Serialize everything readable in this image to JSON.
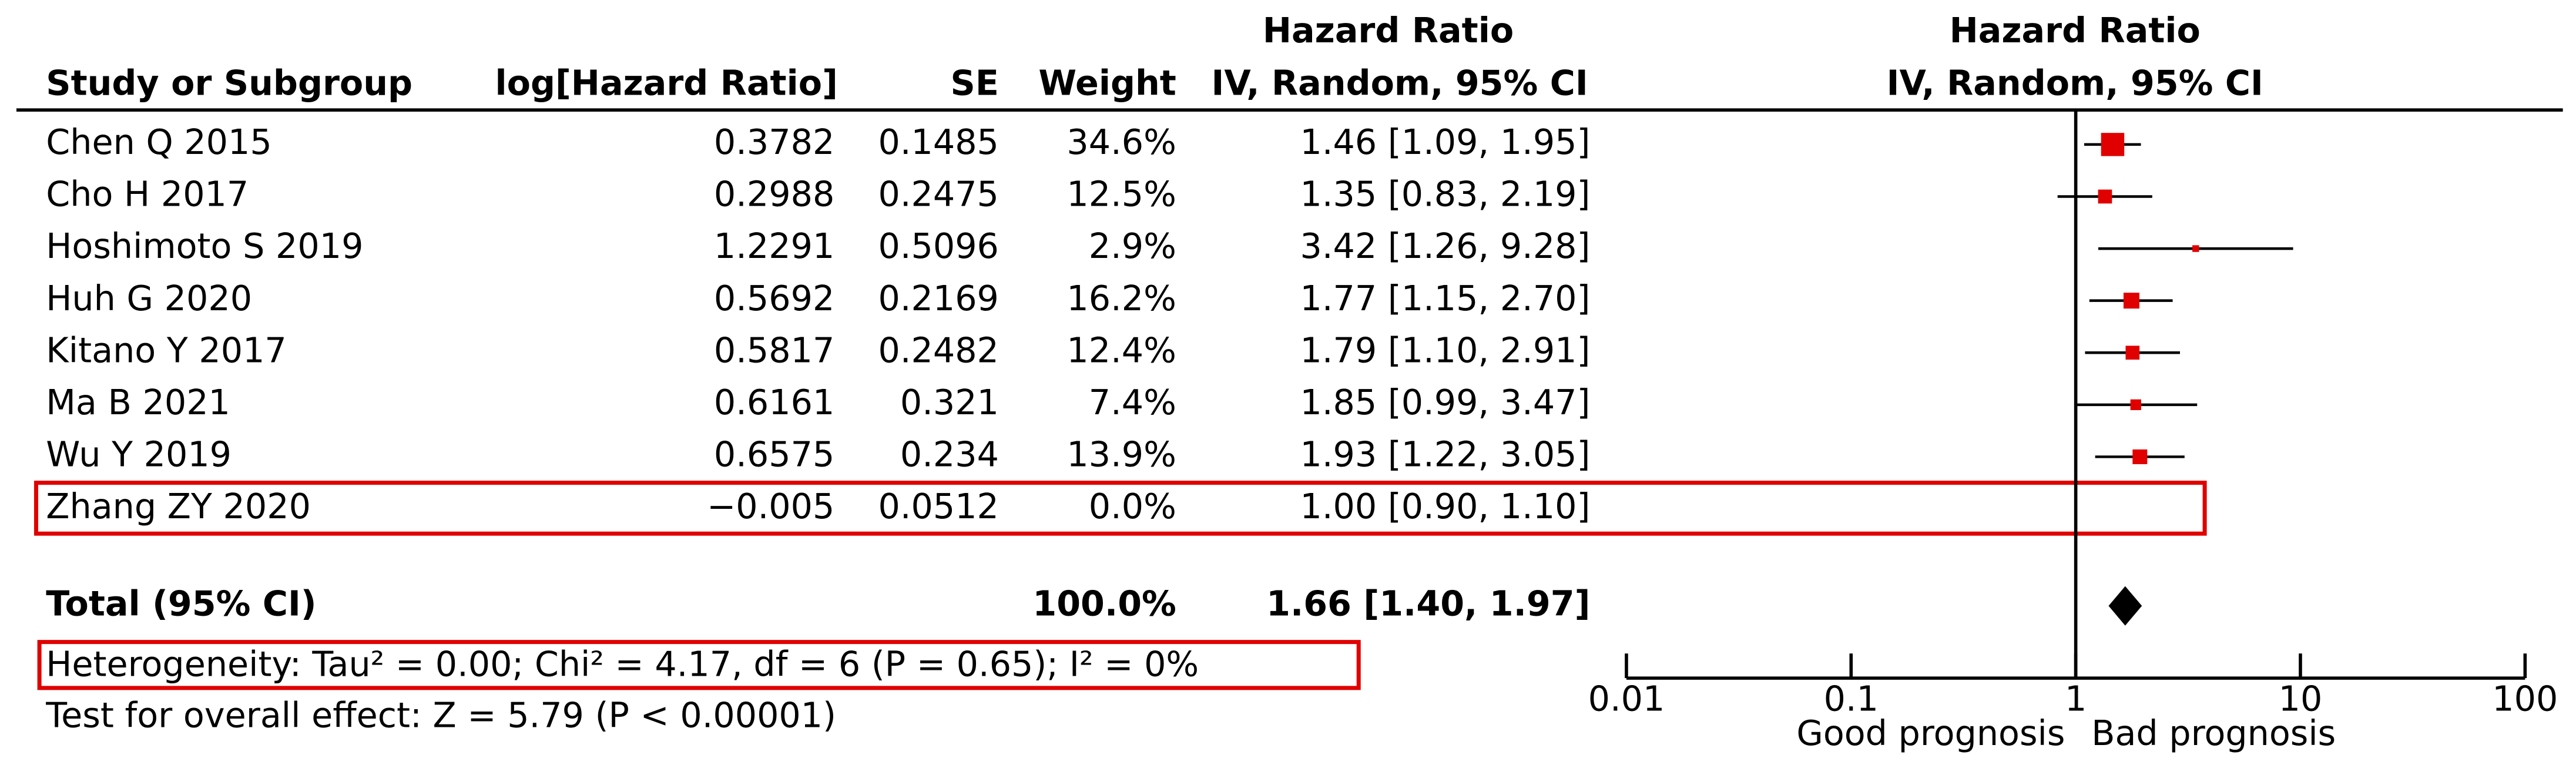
{
  "chart_data": {
    "type": "forest",
    "column_group": "Hazard Ratio",
    "columns": [
      "Study or Subgroup",
      "log[Hazard Ratio]",
      "SE",
      "Weight",
      "IV, Random, 95% CI"
    ],
    "plot_title": "Hazard Ratio",
    "plot_subtitle": "IV, Random, 95% CI",
    "color": "#e00000",
    "rows": [
      {
        "study": "Chen Q 2015",
        "log_hr": 0.3782,
        "se": 0.1485,
        "weight": {
          "value": 34.6,
          "label": "34.6%"
        },
        "hr": {
          "value": 1.46,
          "label": "1.46 [1.09, 1.95]"
        },
        "ci_low": 1.09,
        "ci_high": 1.95
      },
      {
        "study": "Cho H 2017",
        "log_hr": 0.2988,
        "se": 0.2475,
        "weight": {
          "value": 12.5,
          "label": "12.5%"
        },
        "hr": {
          "value": 1.35,
          "label": "1.35 [0.83, 2.19]"
        },
        "ci_low": 0.83,
        "ci_high": 2.19
      },
      {
        "study": "Hoshimoto S 2019",
        "log_hr": 1.2291,
        "se": 0.5096,
        "weight": {
          "value": 2.9,
          "label": "2.9%"
        },
        "hr": {
          "value": 3.42,
          "label": "3.42 [1.26, 9.28]"
        },
        "ci_low": 1.26,
        "ci_high": 9.28
      },
      {
        "study": "Huh G 2020",
        "log_hr": 0.5692,
        "se": 0.2169,
        "weight": {
          "value": 16.2,
          "label": "16.2%"
        },
        "hr": {
          "value": 1.77,
          "label": "1.77 [1.15, 2.70]"
        },
        "ci_low": 1.15,
        "ci_high": 2.7
      },
      {
        "study": "Kitano Y  2017",
        "log_hr": 0.5817,
        "se": 0.2482,
        "weight": {
          "value": 12.4,
          "label": "12.4%"
        },
        "hr": {
          "value": 1.79,
          "label": "1.79 [1.10, 2.91]"
        },
        "ci_low": 1.1,
        "ci_high": 2.91
      },
      {
        "study": "Ma B 2021",
        "log_hr": 0.6161,
        "se": 0.321,
        "weight": {
          "value": 7.4,
          "label": "7.4%"
        },
        "hr": {
          "value": 1.85,
          "label": "1.85 [0.99, 3.47]"
        },
        "ci_low": 0.99,
        "ci_high": 3.47
      },
      {
        "study": "Wu Y 2019",
        "log_hr": 0.6575,
        "se": 0.234,
        "weight": {
          "value": 13.9,
          "label": "13.9%"
        },
        "hr": {
          "value": 1.93,
          "label": "1.93 [1.22, 3.05]"
        },
        "ci_low": 1.22,
        "ci_high": 3.05
      },
      {
        "study": "Zhang ZY 2020",
        "log_hr": {
          "value": -0.005,
          "label": "−0.005"
        },
        "se": 0.0512,
        "weight": {
          "value": 0.0,
          "label": "0.0%"
        },
        "hr": {
          "value": 1.0,
          "label": "1.00 [0.90, 1.10]"
        },
        "ci_low": 0.9,
        "ci_high": 1.1
      }
    ],
    "total": {
      "label": "Total (95% CI)",
      "weight": {
        "value": 100.0,
        "label": "100.0%"
      },
      "hr": {
        "value": 1.66,
        "label": "1.66 [1.40, 1.97]"
      },
      "ci_low": 1.4,
      "ci_high": 1.97
    },
    "heterogeneity": "Heterogeneity: Tau² = 0.00; Chi² = 4.17, df = 6 (P = 0.65); I² = 0%",
    "overall_effect": "Test for overall effect: Z = 5.79 (P < 0.00001)",
    "x_scale": "log",
    "xlim": [
      0.01,
      100
    ],
    "xticks": [
      0.01,
      0.1,
      1,
      10,
      100
    ],
    "reference_line": 1,
    "x_labels": [
      "Good prognosis",
      "Bad prognosis"
    ]
  }
}
